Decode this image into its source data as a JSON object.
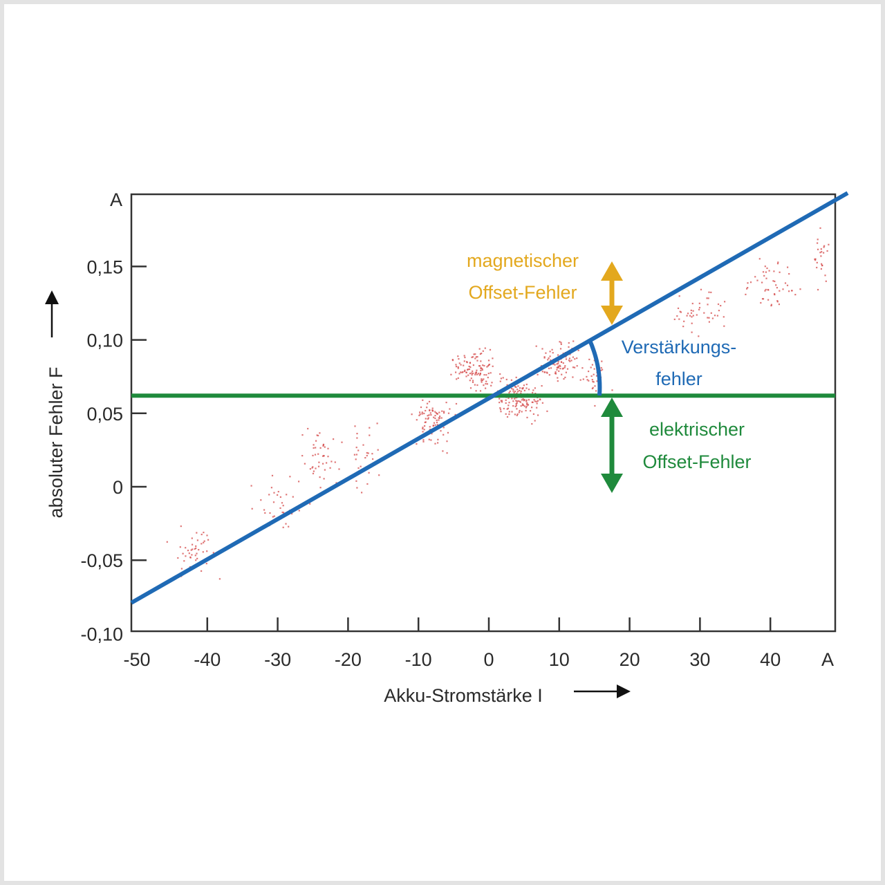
{
  "chart_data": {
    "type": "scatter",
    "xlabel": "Akku-Stromstärke I",
    "ylabel": "absoluter Fehler F",
    "x_unit": "A",
    "y_unit": "A",
    "xlim": [
      -50,
      50
    ],
    "ylim": [
      -0.1,
      0.2
    ],
    "x_ticks": [
      -50,
      -40,
      -30,
      -20,
      -10,
      0,
      10,
      20,
      30,
      40
    ],
    "x_tick_labels": [
      "-50",
      "-40",
      "-30",
      "-20",
      "-10",
      "0",
      "10",
      "20",
      "30",
      "40"
    ],
    "y_ticks": [
      -0.1,
      -0.05,
      0,
      0.05,
      0.1,
      0.15
    ],
    "y_tick_labels": [
      "-0,10",
      "-0,05",
      "0",
      "0,05",
      "0,10",
      "0,15"
    ],
    "grid": false,
    "lines": [
      {
        "kind": "regression",
        "color": "#1f6ab5",
        "points": [
          [
            -50,
            -0.079
          ],
          [
            50,
            0.2
          ]
        ]
      },
      {
        "kind": "horizontal",
        "color": "#1f8a3c",
        "y": 0.062
      }
    ],
    "scatter_color": "#d44a4a",
    "scatter_clusters": [
      {
        "x_center": -42,
        "y_center": -0.045,
        "x_spread": 6,
        "y_spread": 0.025,
        "count": 45
      },
      {
        "x_center": -30,
        "y_center": -0.01,
        "x_spread": 5,
        "y_spread": 0.025,
        "count": 35
      },
      {
        "x_center": -24,
        "y_center": 0.02,
        "x_spread": 4,
        "y_spread": 0.025,
        "count": 45
      },
      {
        "x_center": -18,
        "y_center": 0.025,
        "x_spread": 3,
        "y_spread": 0.03,
        "count": 30
      },
      {
        "x_center": -8,
        "y_center": 0.045,
        "x_spread": 4,
        "y_spread": 0.025,
        "count": 90
      },
      {
        "x_center": -2,
        "y_center": 0.08,
        "x_spread": 4,
        "y_spread": 0.02,
        "count": 110
      },
      {
        "x_center": 4,
        "y_center": 0.06,
        "x_spread": 5,
        "y_spread": 0.02,
        "count": 150
      },
      {
        "x_center": 10,
        "y_center": 0.085,
        "x_spread": 4,
        "y_spread": 0.02,
        "count": 90
      },
      {
        "x_center": 15,
        "y_center": 0.075,
        "x_spread": 3,
        "y_spread": 0.025,
        "count": 35
      },
      {
        "x_center": 30,
        "y_center": 0.12,
        "x_spread": 5,
        "y_spread": 0.02,
        "count": 45
      },
      {
        "x_center": 40,
        "y_center": 0.14,
        "x_spread": 5,
        "y_spread": 0.025,
        "count": 50
      },
      {
        "x_center": 47,
        "y_center": 0.16,
        "x_spread": 2,
        "y_spread": 0.03,
        "count": 25
      }
    ],
    "annotations": [
      {
        "name": "magnetic-offset",
        "lines": [
          "magnetischer",
          "Offset-Fehler"
        ],
        "color": "#e3a81e"
      },
      {
        "name": "gain-error",
        "lines": [
          "Verstärkungs-",
          "fehler"
        ],
        "color": "#1f6ab5"
      },
      {
        "name": "electric-offset",
        "lines": [
          "elektrischer",
          "Offset-Fehler"
        ],
        "color": "#1f8a3c"
      }
    ]
  }
}
